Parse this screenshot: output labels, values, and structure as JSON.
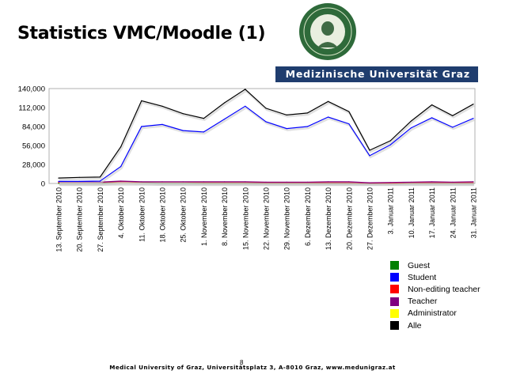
{
  "slide": {
    "title": "Statistics VMC/Moodle (1)",
    "banner": "Medizinische Universität Graz",
    "footer": "Medical University of Graz, Universitätsplatz 3, A-8010 Graz, www.medunigraz.at",
    "page_number": "8"
  },
  "colors": {
    "banner_bg": "#1f3d6e",
    "Guest": "#008000",
    "Student": "#0000ff",
    "Non-editing teacher": "#ff0000",
    "Teacher": "#800080",
    "Administrator": "#ffff00",
    "Alle": "#000000"
  },
  "chart_data": {
    "type": "line",
    "categories": [
      "13. September 2010",
      "20. September 2010",
      "27. September 2010",
      "4. Oktober 2010",
      "11. Oktober 2010",
      "18. Oktober 2010",
      "25. Oktober 2010",
      "1. November 2010",
      "8. November 2010",
      "15. November 2010",
      "22. November 2010",
      "29. November 2010",
      "6. Dezember 2010",
      "13. Dezember 2010",
      "20. Dezember 2010",
      "27. Dezember 2010",
      "3. Januar 2011",
      "10. Januar 2011",
      "17. Januar 2011",
      "24. Januar 2011",
      "31. Januar 2011"
    ],
    "yticks": [
      "0",
      "28,000",
      "56,000",
      "84,000",
      "112,000",
      "140,000"
    ],
    "ylim": [
      0,
      140000
    ],
    "grid": true,
    "legend_position": "right-bottom",
    "series": [
      {
        "name": "Guest",
        "values": [
          0,
          0,
          0,
          2500,
          1500,
          0,
          0,
          0,
          0,
          0,
          0,
          0,
          0,
          0,
          0,
          0,
          0,
          0,
          0,
          0,
          0
        ]
      },
      {
        "name": "Student",
        "values": [
          3000,
          3000,
          3500,
          25000,
          84000,
          87000,
          78000,
          76000,
          95000,
          114000,
          91000,
          81000,
          84000,
          98000,
          88000,
          41000,
          57000,
          82000,
          97000,
          83000,
          96000
        ]
      },
      {
        "name": "Non-editing teacher",
        "values": [
          1500,
          1500,
          1500,
          2500,
          2000,
          2000,
          2000,
          1500,
          1500,
          1500,
          1000,
          1000,
          1000,
          1000,
          1000,
          500,
          500,
          1000,
          1000,
          1000,
          1000
        ]
      },
      {
        "name": "Teacher",
        "values": [
          2500,
          2500,
          2000,
          3500,
          2500,
          2500,
          2500,
          2500,
          2500,
          2500,
          2000,
          2000,
          2000,
          2500,
          2500,
          1000,
          1500,
          2000,
          2500,
          2000,
          2500
        ]
      },
      {
        "name": "Administrator",
        "values": [
          500,
          500,
          500,
          500,
          500,
          500,
          500,
          500,
          500,
          500,
          500,
          500,
          500,
          500,
          500,
          500,
          500,
          500,
          500,
          500,
          500
        ]
      },
      {
        "name": "Alle",
        "values": [
          8000,
          9000,
          9500,
          54000,
          122000,
          114000,
          103000,
          96000,
          119000,
          139000,
          111000,
          101000,
          104000,
          121000,
          106000,
          49000,
          63000,
          92000,
          116000,
          100000,
          117000
        ]
      }
    ]
  }
}
